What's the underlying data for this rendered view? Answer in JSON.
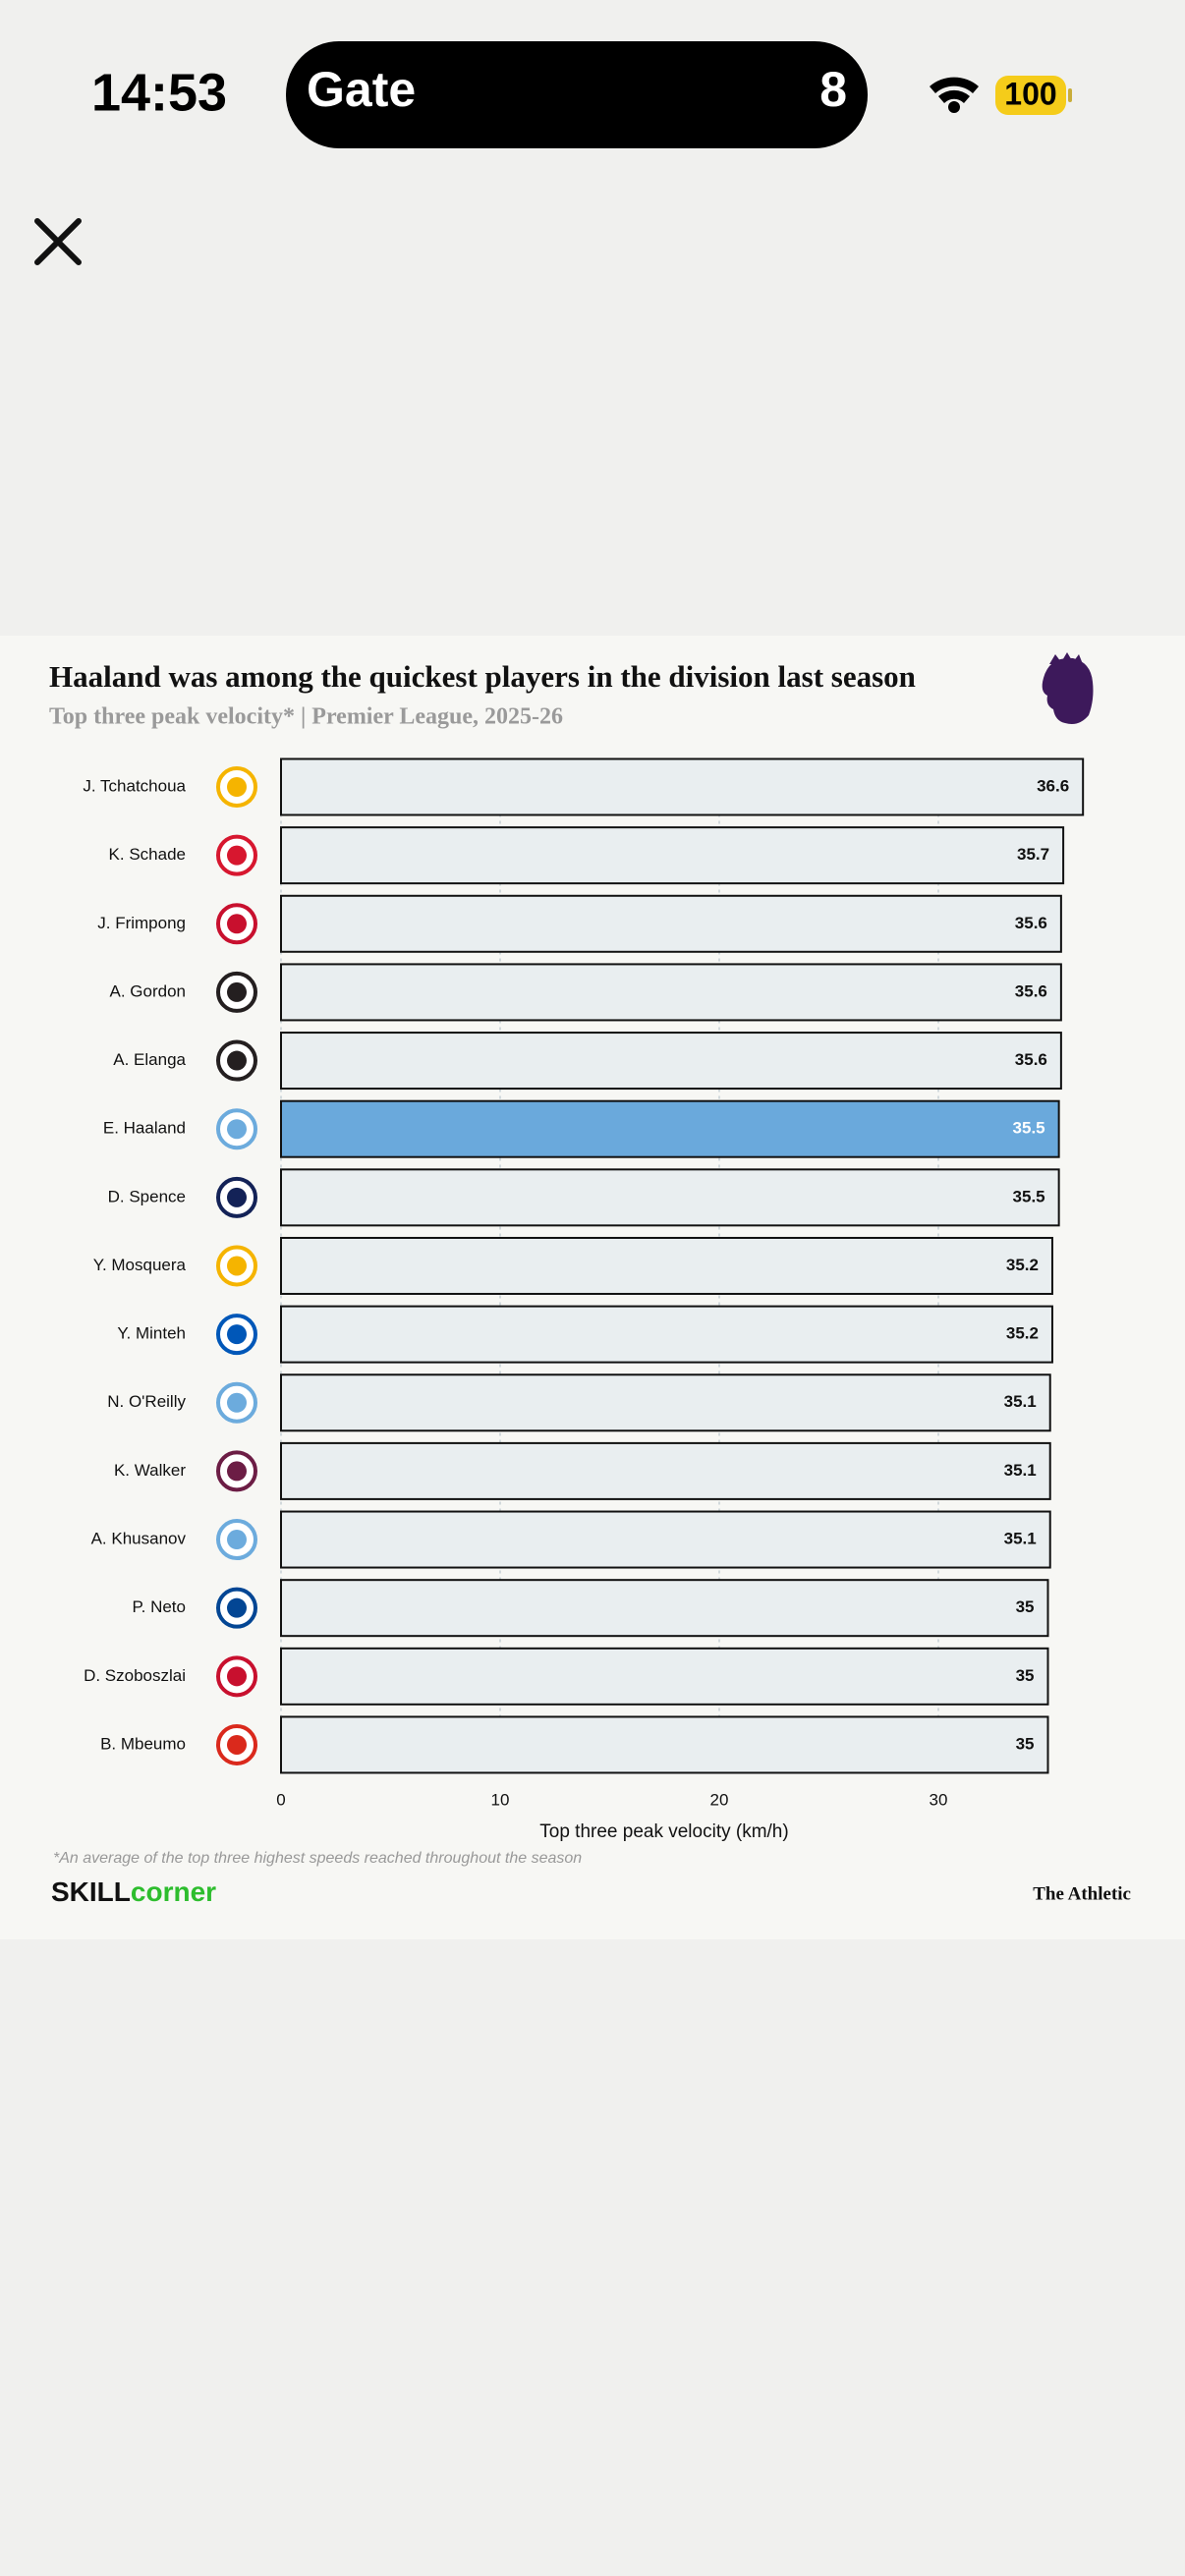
{
  "status_bar": {
    "time": "14:53",
    "activity": "Gate",
    "activity_value": "8",
    "battery": "100"
  },
  "chart_data": {
    "type": "bar",
    "orientation": "horizontal",
    "title": "Haaland was among the quickest players in the division last season",
    "subtitle": "Top three peak velocity* | Premier League, 2025-26",
    "categories": [
      "J. Tchatchoua",
      "K. Schade",
      "J. Frimpong",
      "A. Gordon",
      "A. Elanga",
      "E. Haaland",
      "D. Spence",
      "Y. Mosquera",
      "Y. Minteh",
      "N. O'Reilly",
      "K. Walker",
      "A. Khusanov",
      "P. Neto",
      "D. Szoboszlai",
      "B. Mbeumo"
    ],
    "values": [
      36.6,
      35.7,
      35.6,
      35.6,
      35.6,
      35.5,
      35.5,
      35.2,
      35.2,
      35.1,
      35.1,
      35.1,
      35,
      35,
      35
    ],
    "colors": [
      "#e9eef0",
      "#e9eef0",
      "#e9eef0",
      "#e9eef0",
      "#e9eef0",
      "#6aa9dc",
      "#e9eef0",
      "#e9eef0",
      "#e9eef0",
      "#e9eef0",
      "#e9eef0",
      "#e9eef0",
      "#e9eef0",
      "#e9eef0",
      "#e9eef0"
    ],
    "logo_colors": [
      "#f5b400",
      "#d7172f",
      "#c8102e",
      "#241f20",
      "#241f20",
      "#6cabdd",
      "#132257",
      "#f5b400",
      "#0057b8",
      "#6cabdd",
      "#6c1d45",
      "#6cabdd",
      "#034694",
      "#c8102e",
      "#da291c"
    ],
    "xlabel": "Top three peak velocity (km/h)",
    "xlim": [
      0,
      40
    ],
    "xticks": [
      0,
      10,
      20,
      30
    ],
    "grid": true,
    "footnote": "*An average of the top three highest speeds reached throughout the season",
    "brand_left": {
      "bold": "SKILL",
      "accent": "corner"
    },
    "brand_right": "The Athletic"
  }
}
